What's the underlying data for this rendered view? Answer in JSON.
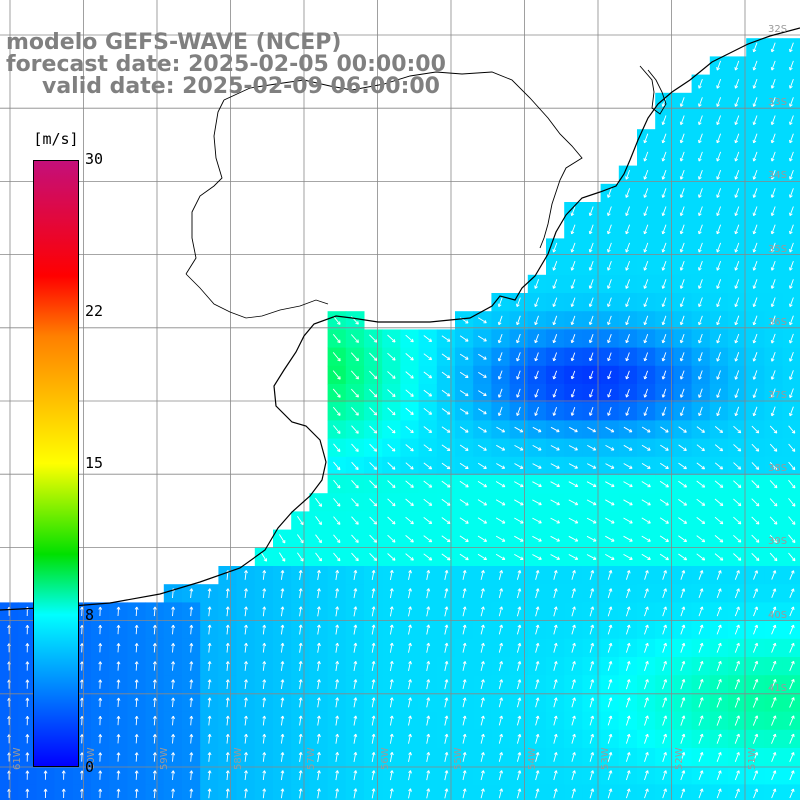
{
  "title": {
    "line1": "modelo GEFS-WAVE (NCEP)",
    "line2": "forecast date: 2025-02-05 00:00:00",
    "line3": "valid date: 2025-02-09 06:00:00"
  },
  "colorbar": {
    "units": "[m/s]",
    "ticks": [
      "30",
      "22",
      "15",
      "8",
      "0"
    ],
    "tick_values": [
      30,
      22,
      15,
      8,
      0
    ],
    "range": [
      0,
      30
    ],
    "colors": [
      "#0000ff",
      "#0090ff",
      "#00ffff",
      "#00e000",
      "#ffff00",
      "#ff8000",
      "#ff0000",
      "#c40f7a"
    ]
  },
  "lat_labels": [
    "32S",
    "33S",
    "34S",
    "35S",
    "36S",
    "37S",
    "38S",
    "39S",
    "40S",
    "41S"
  ],
  "lon_labels": [
    "61W",
    "60W",
    "59W",
    "58W",
    "57W",
    "56W",
    "55W",
    "54W",
    "53W",
    "52W",
    "51W"
  ],
  "colors": {
    "land": "#ffffff",
    "coastline": "#000000",
    "grid": "#888888",
    "arrows": "#ffffff",
    "title_text": "#808080"
  }
}
